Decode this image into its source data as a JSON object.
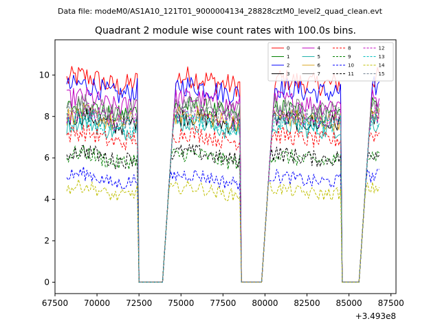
{
  "chart_data": {
    "type": "line",
    "suptitle": "Data file: modeM0/AS1A10_121T01_9000004134_28828cztM0_level2_quad_clean.evt",
    "title": "Quadrant 2 module wise count rates with 100.0s bins.",
    "xlabel": "",
    "ylabel": "",
    "x_offset_label": "+3.493e8",
    "x_offset": 349300000,
    "xlim": [
      67500,
      87800
    ],
    "ylim": [
      -0.55,
      11.7
    ],
    "x_ticks": [
      67500,
      70000,
      72500,
      75000,
      77500,
      80000,
      82500,
      85000,
      87500
    ],
    "x_tick_labels": [
      "67500",
      "70000",
      "72500",
      "75000",
      "77500",
      "80000",
      "82500",
      "85000",
      "87500"
    ],
    "y_ticks": [
      0,
      2,
      4,
      6,
      8,
      10
    ],
    "y_tick_labels": [
      "0",
      "2",
      "4",
      "6",
      "8",
      "10"
    ],
    "bin_size_s": 100,
    "x_start": 68200,
    "x_end": 86800,
    "gaps": [
      [
        72500,
        73950
      ],
      [
        78600,
        79800
      ],
      [
        84600,
        85600
      ]
    ],
    "legend_location": "upper right",
    "series": [
      {
        "name": "0",
        "color": "#ff0000",
        "style": "solid",
        "level": 9.7
      },
      {
        "name": "1",
        "color": "#008000",
        "style": "solid",
        "level": 8.3
      },
      {
        "name": "2",
        "color": "#0000ff",
        "style": "solid",
        "level": 9.3
      },
      {
        "name": "3",
        "color": "#000000",
        "style": "solid",
        "level": 7.8
      },
      {
        "name": "4",
        "color": "#bf00bf",
        "style": "solid",
        "level": 8.7
      },
      {
        "name": "5",
        "color": "#20b2aa",
        "style": "solid",
        "level": 7.5
      },
      {
        "name": "6",
        "color": "#daa520",
        "style": "solid",
        "level": 7.9
      },
      {
        "name": "7",
        "color": "#808080",
        "style": "solid",
        "level": 8.4
      },
      {
        "name": "8",
        "color": "#ff0000",
        "style": "dashed",
        "level": 7.0
      },
      {
        "name": "9",
        "color": "#008000",
        "style": "dashed",
        "level": 6.0
      },
      {
        "name": "10",
        "color": "#0000ff",
        "style": "dashed",
        "level": 5.0
      },
      {
        "name": "11",
        "color": "#000000",
        "style": "dashed",
        "level": 6.1
      },
      {
        "name": "12",
        "color": "#bf00bf",
        "style": "dashed",
        "level": 8.0
      },
      {
        "name": "13",
        "color": "#00bfbf",
        "style": "dashed",
        "level": 7.7
      },
      {
        "name": "14",
        "color": "#bfbf00",
        "style": "dashed",
        "level": 4.4
      },
      {
        "name": "15",
        "color": "#708090",
        "style": "dashed",
        "level": 8.1
      }
    ]
  }
}
